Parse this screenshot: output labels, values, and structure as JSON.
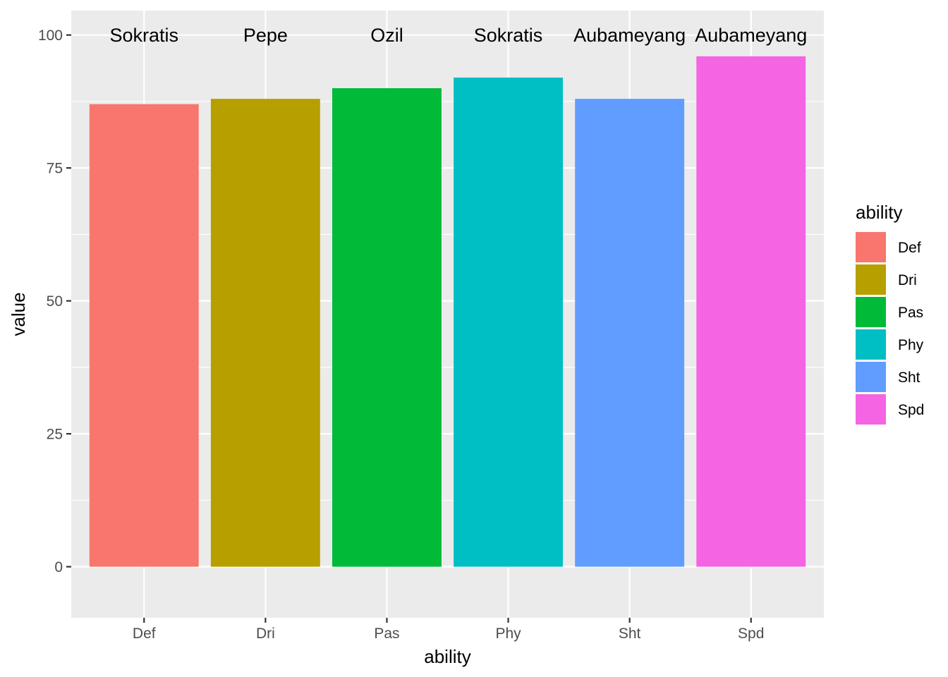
{
  "chart_data": {
    "type": "bar",
    "title": "",
    "xlabel": "ability",
    "ylabel": "value",
    "ylim": [
      -9.6,
      104.6
    ],
    "yticks": [
      0,
      25,
      50,
      75,
      100
    ],
    "grid": true,
    "legend": {
      "title": "ability",
      "placement": "right"
    },
    "categories": [
      "Def",
      "Dri",
      "Pas",
      "Phy",
      "Sht",
      "Spd"
    ],
    "values": [
      87,
      88,
      90,
      92,
      88,
      96
    ],
    "bar_labels": [
      "Sokratis",
      "Pepe",
      "Ozil",
      "Sokratis",
      "Aubameyang",
      "Aubameyang"
    ],
    "bar_label_value": 100,
    "colors": [
      "#F8766D",
      "#B79F00",
      "#00BA38",
      "#00BFC4",
      "#619CFF",
      "#F564E3"
    ],
    "panel_background": "#EBEBEB",
    "gridline_color": "#FFFFFF"
  }
}
